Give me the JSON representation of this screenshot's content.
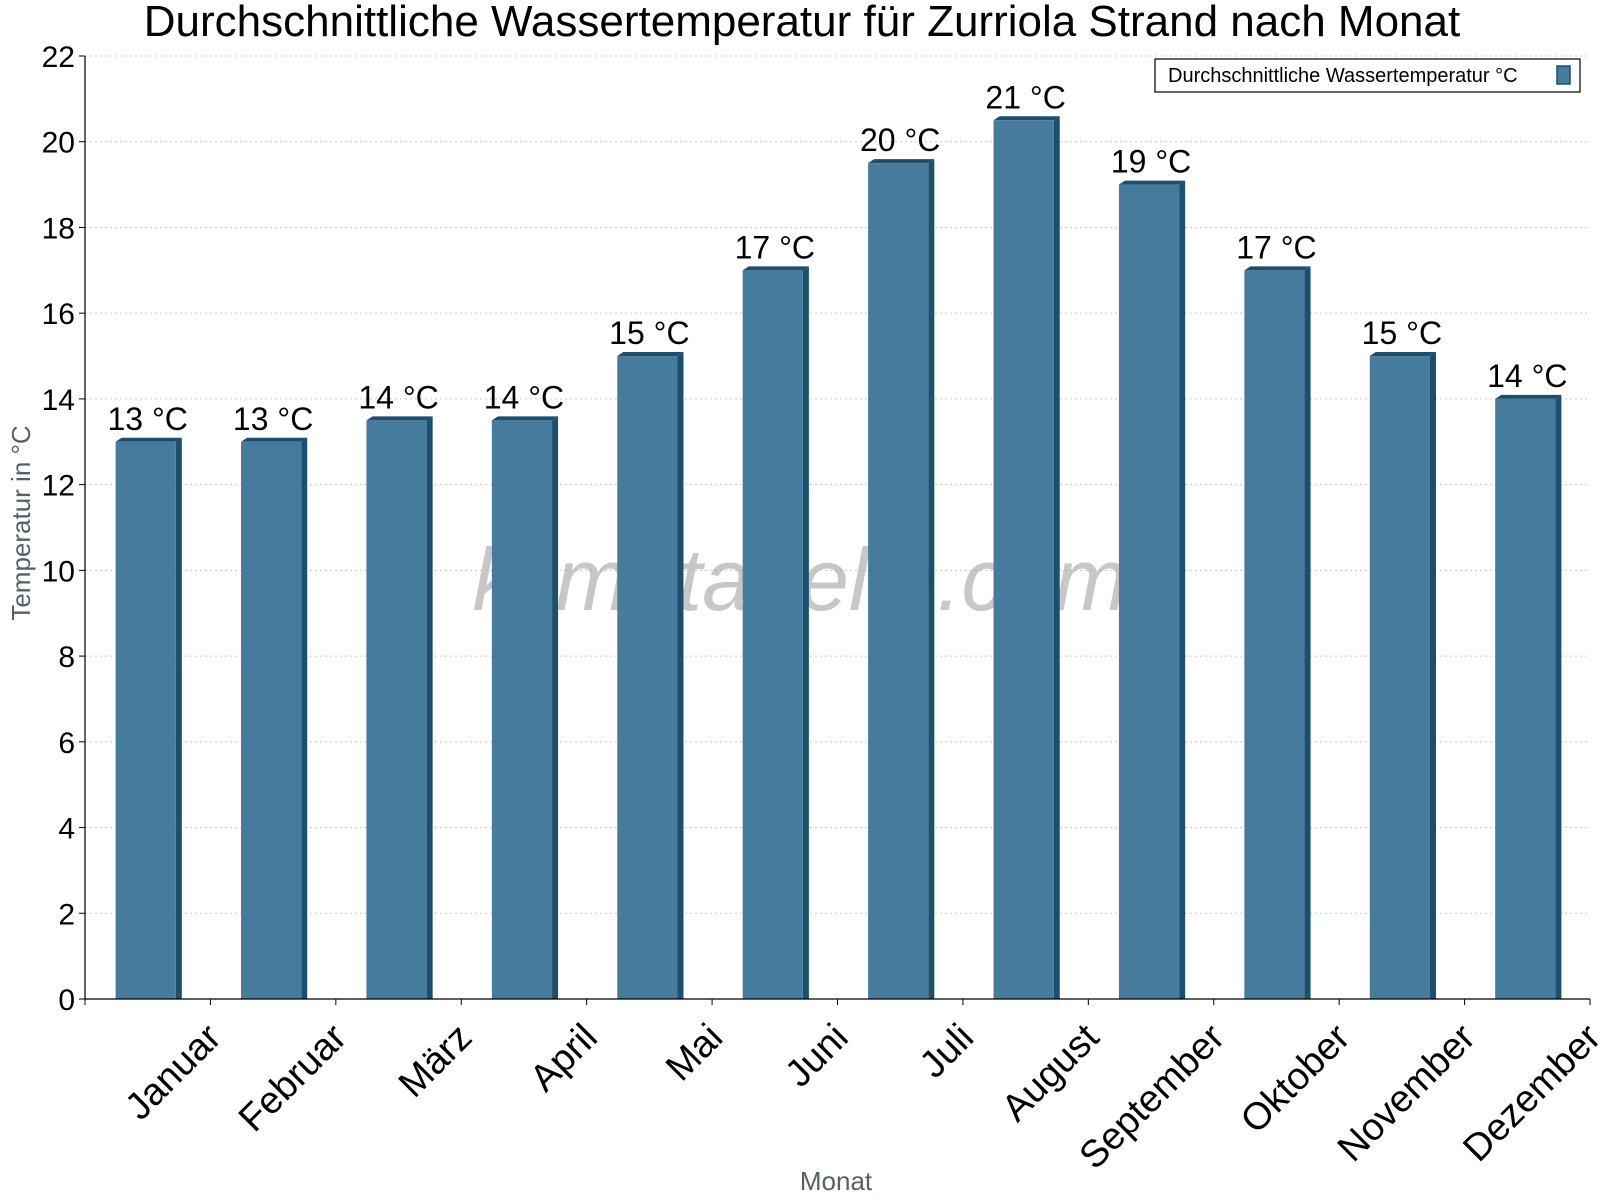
{
  "chart_data": {
    "type": "bar",
    "title": "Durchschnittliche Wassertemperatur für Zurriola Strand nach Monat",
    "xlabel": "Monat",
    "ylabel": "Temperatur in °C",
    "ylim": [
      0,
      22
    ],
    "yticks": [
      "0",
      "2",
      "4",
      "6",
      "8",
      "10",
      "12",
      "14",
      "16",
      "18",
      "20",
      "22"
    ],
    "grid": true,
    "legend_position": "top-right",
    "categories": [
      "Januar",
      "Februar",
      "März",
      "April",
      "Mai",
      "Juni",
      "Juli",
      "August",
      "September",
      "Oktober",
      "November",
      "Dezember"
    ],
    "series": [
      {
        "name": "Durchschnittliche Wassertemperatur °C",
        "values": [
          13,
          13,
          13.5,
          13.5,
          15,
          17,
          19.5,
          20.5,
          19,
          17,
          15,
          14
        ],
        "data_labels": [
          "13 °C",
          "13 °C",
          "14 °C",
          "14 °C",
          "15 °C",
          "17 °C",
          "20 °C",
          "21 °C",
          "19 °C",
          "17 °C",
          "15 °C",
          "14 °C"
        ],
        "color": "#457b9d",
        "edge_color": "#1d4e6e"
      }
    ],
    "watermark": "klimatabelle.com"
  }
}
